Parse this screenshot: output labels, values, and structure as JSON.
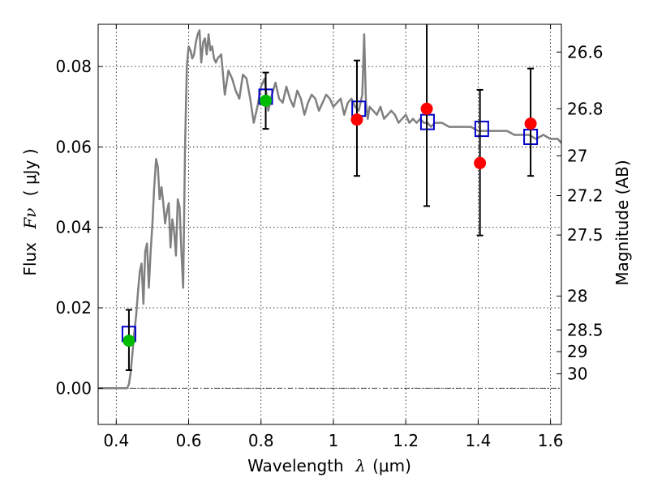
{
  "chart_data": {
    "type": "scatter",
    "xlabel_text": "Wavelength",
    "xlabel_symbol": "λ",
    "xlabel_unit": "(μm)",
    "ylabel_text": "Flux",
    "ylabel_symbol": "Fν",
    "ylabel_unit": "( μJy )",
    "y2label": "Magnitude (AB)",
    "xlim": [
      0.35,
      1.63
    ],
    "ylim": [
      -0.009,
      0.0905
    ],
    "grid": true,
    "x_ticks": [
      {
        "value": 0.4,
        "label": "0.4"
      },
      {
        "value": 0.6,
        "label": "0.6"
      },
      {
        "value": 0.8,
        "label": "0.8"
      },
      {
        "value": 1.0,
        "label": "1"
      },
      {
        "value": 1.2,
        "label": "1.2"
      },
      {
        "value": 1.4,
        "label": "1.4"
      },
      {
        "value": 1.6,
        "label": "1.6"
      }
    ],
    "y_ticks": [
      {
        "value": 0.0,
        "label": "0.00"
      },
      {
        "value": 0.02,
        "label": "0.02"
      },
      {
        "value": 0.04,
        "label": "0.04"
      },
      {
        "value": 0.06,
        "label": "0.06"
      },
      {
        "value": 0.08,
        "label": "0.08"
      }
    ],
    "magnitude_ticks": [
      {
        "flux": 0.0836,
        "label": "26.6"
      },
      {
        "flux": 0.0695,
        "label": "26.8"
      },
      {
        "flux": 0.0578,
        "label": "27"
      },
      {
        "flux": 0.0479,
        "label": "27.2"
      },
      {
        "flux": 0.0381,
        "label": "27.5"
      },
      {
        "flux": 0.0229,
        "label": "28"
      },
      {
        "flux": 0.0145,
        "label": "28.5"
      },
      {
        "flux": 0.0091,
        "label": "29"
      },
      {
        "flux": 0.0036,
        "label": "30"
      }
    ],
    "colors": {
      "model": "#808080",
      "box": "#0000cc",
      "red": "#ff0000",
      "green": "#00bb00",
      "errorbar": "#000000",
      "grid": "#000000",
      "zero_line": "#555555"
    },
    "model_spectrum": {
      "x": [
        0.35,
        0.43,
        0.435,
        0.44,
        0.445,
        0.45,
        0.455,
        0.46,
        0.465,
        0.47,
        0.475,
        0.48,
        0.485,
        0.49,
        0.495,
        0.5,
        0.505,
        0.51,
        0.515,
        0.52,
        0.525,
        0.53,
        0.535,
        0.54,
        0.545,
        0.55,
        0.555,
        0.56,
        0.565,
        0.57,
        0.575,
        0.58,
        0.585,
        0.59,
        0.595,
        0.6,
        0.605,
        0.61,
        0.615,
        0.62,
        0.625,
        0.63,
        0.635,
        0.64,
        0.645,
        0.65,
        0.655,
        0.66,
        0.665,
        0.67,
        0.675,
        0.68,
        0.69,
        0.7,
        0.71,
        0.72,
        0.73,
        0.74,
        0.75,
        0.76,
        0.77,
        0.78,
        0.79,
        0.8,
        0.81,
        0.82,
        0.83,
        0.84,
        0.85,
        0.86,
        0.87,
        0.88,
        0.89,
        0.9,
        0.91,
        0.92,
        0.93,
        0.94,
        0.95,
        0.96,
        0.97,
        0.98,
        0.99,
        1.0,
        1.01,
        1.02,
        1.03,
        1.04,
        1.05,
        1.06,
        1.07,
        1.08,
        1.085,
        1.09,
        1.095,
        1.1,
        1.11,
        1.12,
        1.13,
        1.14,
        1.15,
        1.16,
        1.17,
        1.18,
        1.19,
        1.2,
        1.21,
        1.22,
        1.23,
        1.24,
        1.25,
        1.26,
        1.27,
        1.28,
        1.3,
        1.32,
        1.34,
        1.36,
        1.38,
        1.4,
        1.42,
        1.44,
        1.46,
        1.48,
        1.5,
        1.52,
        1.54,
        1.56,
        1.58,
        1.6,
        1.62,
        1.63
      ],
      "y": [
        0.0,
        0.0,
        0.001,
        0.004,
        0.009,
        0.014,
        0.018,
        0.024,
        0.029,
        0.031,
        0.021,
        0.034,
        0.036,
        0.025,
        0.034,
        0.041,
        0.05,
        0.057,
        0.055,
        0.047,
        0.05,
        0.046,
        0.041,
        0.044,
        0.046,
        0.035,
        0.042,
        0.039,
        0.033,
        0.047,
        0.045,
        0.034,
        0.025,
        0.06,
        0.08,
        0.085,
        0.084,
        0.082,
        0.083,
        0.086,
        0.088,
        0.089,
        0.081,
        0.086,
        0.087,
        0.083,
        0.088,
        0.084,
        0.085,
        0.082,
        0.081,
        0.082,
        0.083,
        0.073,
        0.079,
        0.077,
        0.074,
        0.072,
        0.078,
        0.077,
        0.072,
        0.066,
        0.07,
        0.075,
        0.077,
        0.069,
        0.073,
        0.076,
        0.072,
        0.071,
        0.075,
        0.072,
        0.07,
        0.074,
        0.072,
        0.068,
        0.071,
        0.073,
        0.072,
        0.069,
        0.071,
        0.073,
        0.072,
        0.07,
        0.071,
        0.072,
        0.068,
        0.071,
        0.072,
        0.07,
        0.069,
        0.073,
        0.088,
        0.071,
        0.067,
        0.07,
        0.069,
        0.068,
        0.07,
        0.067,
        0.068,
        0.069,
        0.068,
        0.066,
        0.067,
        0.068,
        0.066,
        0.067,
        0.066,
        0.067,
        0.066,
        0.066,
        0.065,
        0.066,
        0.066,
        0.065,
        0.065,
        0.065,
        0.065,
        0.064,
        0.064,
        0.064,
        0.064,
        0.064,
        0.063,
        0.063,
        0.063,
        0.062,
        0.063,
        0.062,
        0.062,
        0.061
      ]
    },
    "model_boxes": [
      {
        "x": 0.435,
        "y": 0.0135
      },
      {
        "x": 0.813,
        "y": 0.0725
      },
      {
        "x": 1.07,
        "y": 0.0695
      },
      {
        "x": 1.26,
        "y": 0.0662
      },
      {
        "x": 1.41,
        "y": 0.0645
      },
      {
        "x": 1.545,
        "y": 0.0625
      }
    ],
    "observations": [
      {
        "x": 0.435,
        "y": 0.0118,
        "err_low": 0.0045,
        "err_high": 0.0195,
        "color": "green"
      },
      {
        "x": 0.813,
        "y": 0.0715,
        "err_low": 0.0645,
        "err_high": 0.0785,
        "color": "green"
      },
      {
        "x": 1.065,
        "y": 0.0668,
        "err_low": 0.0528,
        "err_high": 0.0815,
        "color": "red"
      },
      {
        "x": 1.258,
        "y": 0.0695,
        "err_low": 0.0453,
        "err_high": 0.0905,
        "color": "red"
      },
      {
        "x": 1.405,
        "y": 0.056,
        "err_low": 0.038,
        "err_high": 0.0742,
        "color": "red"
      },
      {
        "x": 1.545,
        "y": 0.0658,
        "err_low": 0.0528,
        "err_high": 0.0795,
        "color": "red"
      }
    ]
  }
}
